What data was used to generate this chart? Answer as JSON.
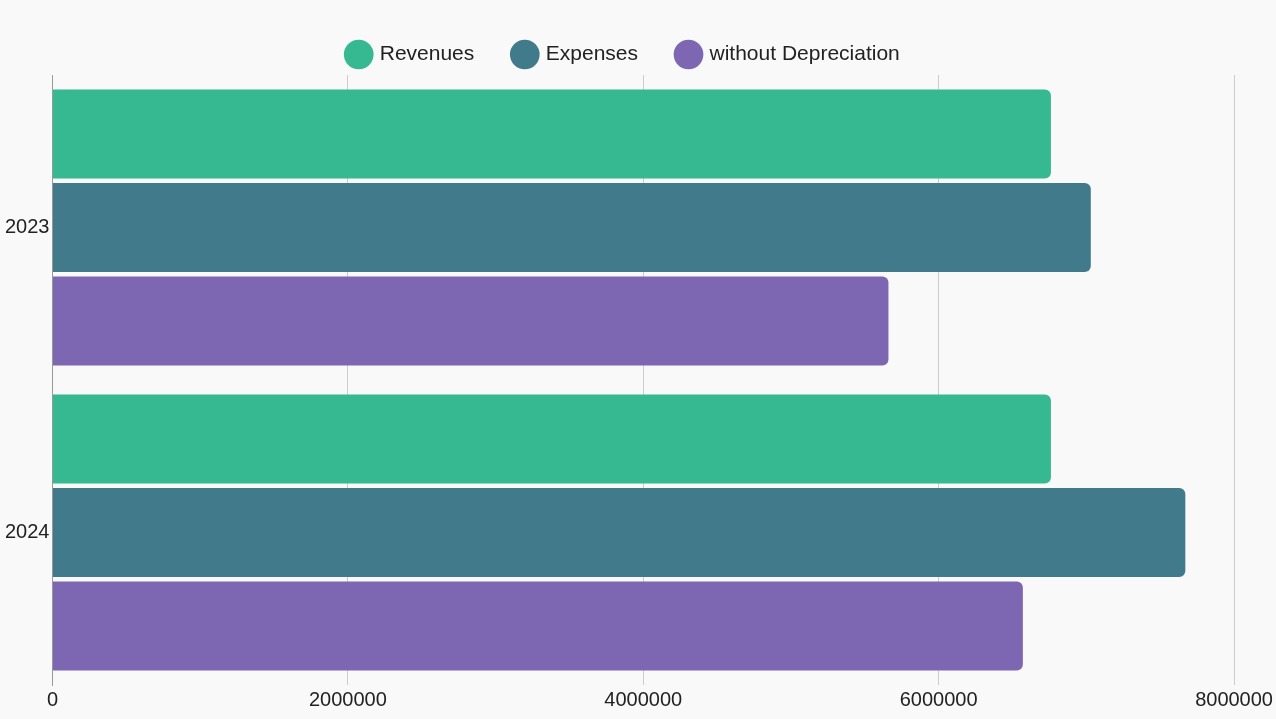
{
  "chart_data": {
    "type": "bar",
    "orientation": "horizontal",
    "categories": [
      "2023",
      "2024"
    ],
    "series": [
      {
        "name": "Revenues",
        "color": "#36b890",
        "values": [
          6760000,
          6760000
        ]
      },
      {
        "name": "Expenses",
        "color": "#417b8b",
        "values": [
          7030000,
          7670000
        ]
      },
      {
        "name": "without Depreciation",
        "color": "#7d66b2",
        "values": [
          5660000,
          6570000
        ]
      }
    ],
    "xlim": [
      0,
      8000000
    ],
    "xticks": [
      0,
      2000000,
      4000000,
      6000000,
      8000000
    ],
    "grid": "x",
    "legend": "top"
  }
}
